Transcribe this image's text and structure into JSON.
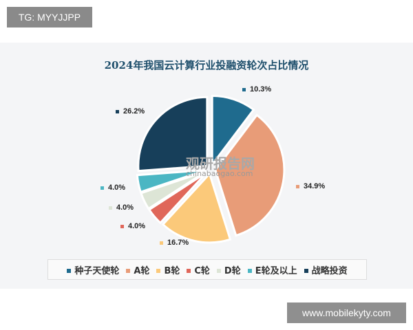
{
  "tg_label": "TG: MYYJJPP",
  "site_label": "www.mobilekyty.com",
  "watermark": {
    "name": "观研报告网",
    "url": "chinabaogao.com"
  },
  "chart_data": {
    "type": "pie",
    "title": "2024年我国云计算行业投融资轮次占比情况",
    "categories": [
      "种子天使轮",
      "A轮",
      "B轮",
      "C轮",
      "D轮",
      "E轮及以上",
      "战略投资"
    ],
    "values": [
      10.3,
      34.9,
      16.7,
      4.0,
      4.0,
      4.0,
      26.2
    ],
    "labels": [
      "10.3%",
      "34.9%",
      "16.7%",
      "4.0%",
      "4.0%",
      "4.0%",
      "26.2%"
    ],
    "colors": [
      "#1f6b8e",
      "#e89c78",
      "#fbc97a",
      "#e0675a",
      "#dde5d6",
      "#4bb6c3",
      "#173f5a"
    ],
    "legend": "bottom"
  }
}
